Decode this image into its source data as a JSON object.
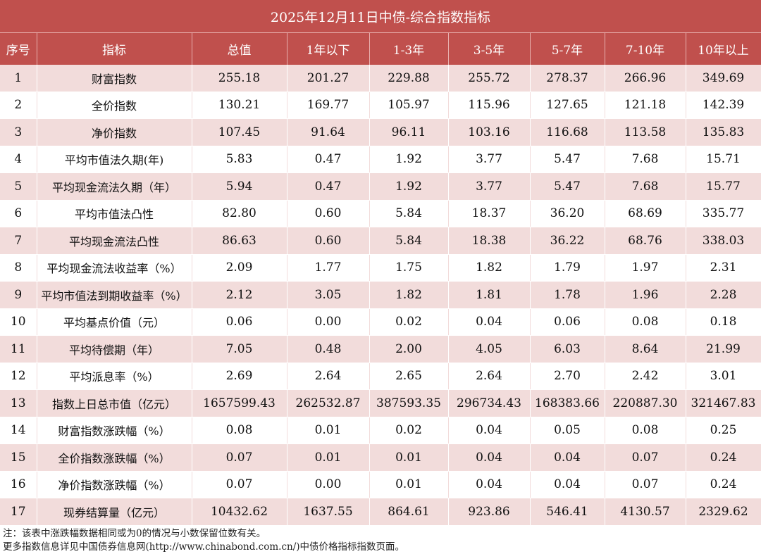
{
  "title": "2025年12月11日中债-综合指数指标",
  "colors": {
    "header": "#c0504d",
    "odd_row": "#f2dcdb"
  },
  "columns": [
    "序号",
    "指标",
    "总值",
    "1年以下",
    "1-3年",
    "3-5年",
    "5-7年",
    "7-10年",
    "10年以上"
  ],
  "rows": [
    [
      "1",
      "财富指数",
      "255.18",
      "201.27",
      "229.88",
      "255.72",
      "278.37",
      "266.96",
      "349.69"
    ],
    [
      "2",
      "全价指数",
      "130.21",
      "169.77",
      "105.97",
      "115.96",
      "127.65",
      "121.18",
      "142.39"
    ],
    [
      "3",
      "净价指数",
      "107.45",
      "91.64",
      "96.11",
      "103.16",
      "116.68",
      "113.58",
      "135.83"
    ],
    [
      "4",
      "平均市值法久期(年)",
      "5.83",
      "0.47",
      "1.92",
      "3.77",
      "5.47",
      "7.68",
      "15.71"
    ],
    [
      "5",
      "平均现金流法久期（年）",
      "5.94",
      "0.47",
      "1.92",
      "3.77",
      "5.47",
      "7.68",
      "15.77"
    ],
    [
      "6",
      "平均市值法凸性",
      "82.80",
      "0.60",
      "5.84",
      "18.37",
      "36.20",
      "68.69",
      "335.77"
    ],
    [
      "7",
      "平均现金流法凸性",
      "86.63",
      "0.60",
      "5.84",
      "18.38",
      "36.22",
      "68.76",
      "338.03"
    ],
    [
      "8",
      "平均现金流法收益率（%）",
      "2.09",
      "1.77",
      "1.75",
      "1.82",
      "1.79",
      "1.97",
      "2.31"
    ],
    [
      "9",
      "平均市值法到期收益率（%）",
      "2.12",
      "3.05",
      "1.82",
      "1.81",
      "1.78",
      "1.96",
      "2.28"
    ],
    [
      "10",
      "平均基点价值（元）",
      "0.06",
      "0.00",
      "0.02",
      "0.04",
      "0.06",
      "0.08",
      "0.18"
    ],
    [
      "11",
      "平均待偿期（年）",
      "7.05",
      "0.48",
      "2.00",
      "4.05",
      "6.03",
      "8.64",
      "21.99"
    ],
    [
      "12",
      "平均派息率（%）",
      "2.69",
      "2.64",
      "2.65",
      "2.64",
      "2.70",
      "2.42",
      "3.01"
    ],
    [
      "13",
      "指数上日总市值（亿元）",
      "1657599.43",
      "262532.87",
      "387593.35",
      "296734.43",
      "168383.66",
      "220887.30",
      "321467.83"
    ],
    [
      "14",
      "财富指数涨跌幅（%）",
      "0.08",
      "0.01",
      "0.02",
      "0.04",
      "0.05",
      "0.08",
      "0.25"
    ],
    [
      "15",
      "全价指数涨跌幅（%）",
      "0.07",
      "0.01",
      "0.01",
      "0.04",
      "0.04",
      "0.07",
      "0.24"
    ],
    [
      "16",
      "净价指数涨跌幅（%）",
      "0.07",
      "0.00",
      "0.01",
      "0.04",
      "0.04",
      "0.07",
      "0.24"
    ],
    [
      "17",
      "现券结算量（亿元）",
      "10432.62",
      "1637.55",
      "864.61",
      "923.86",
      "546.41",
      "4130.57",
      "2329.62"
    ]
  ],
  "notes": [
    "注：该表中涨跌幅数据相同或为0的情况与小数保留位数有关。",
    "更多指数信息详见中国债券信息网(http://www.chinabond.com.cn/)中债价格指标指数页面。"
  ]
}
